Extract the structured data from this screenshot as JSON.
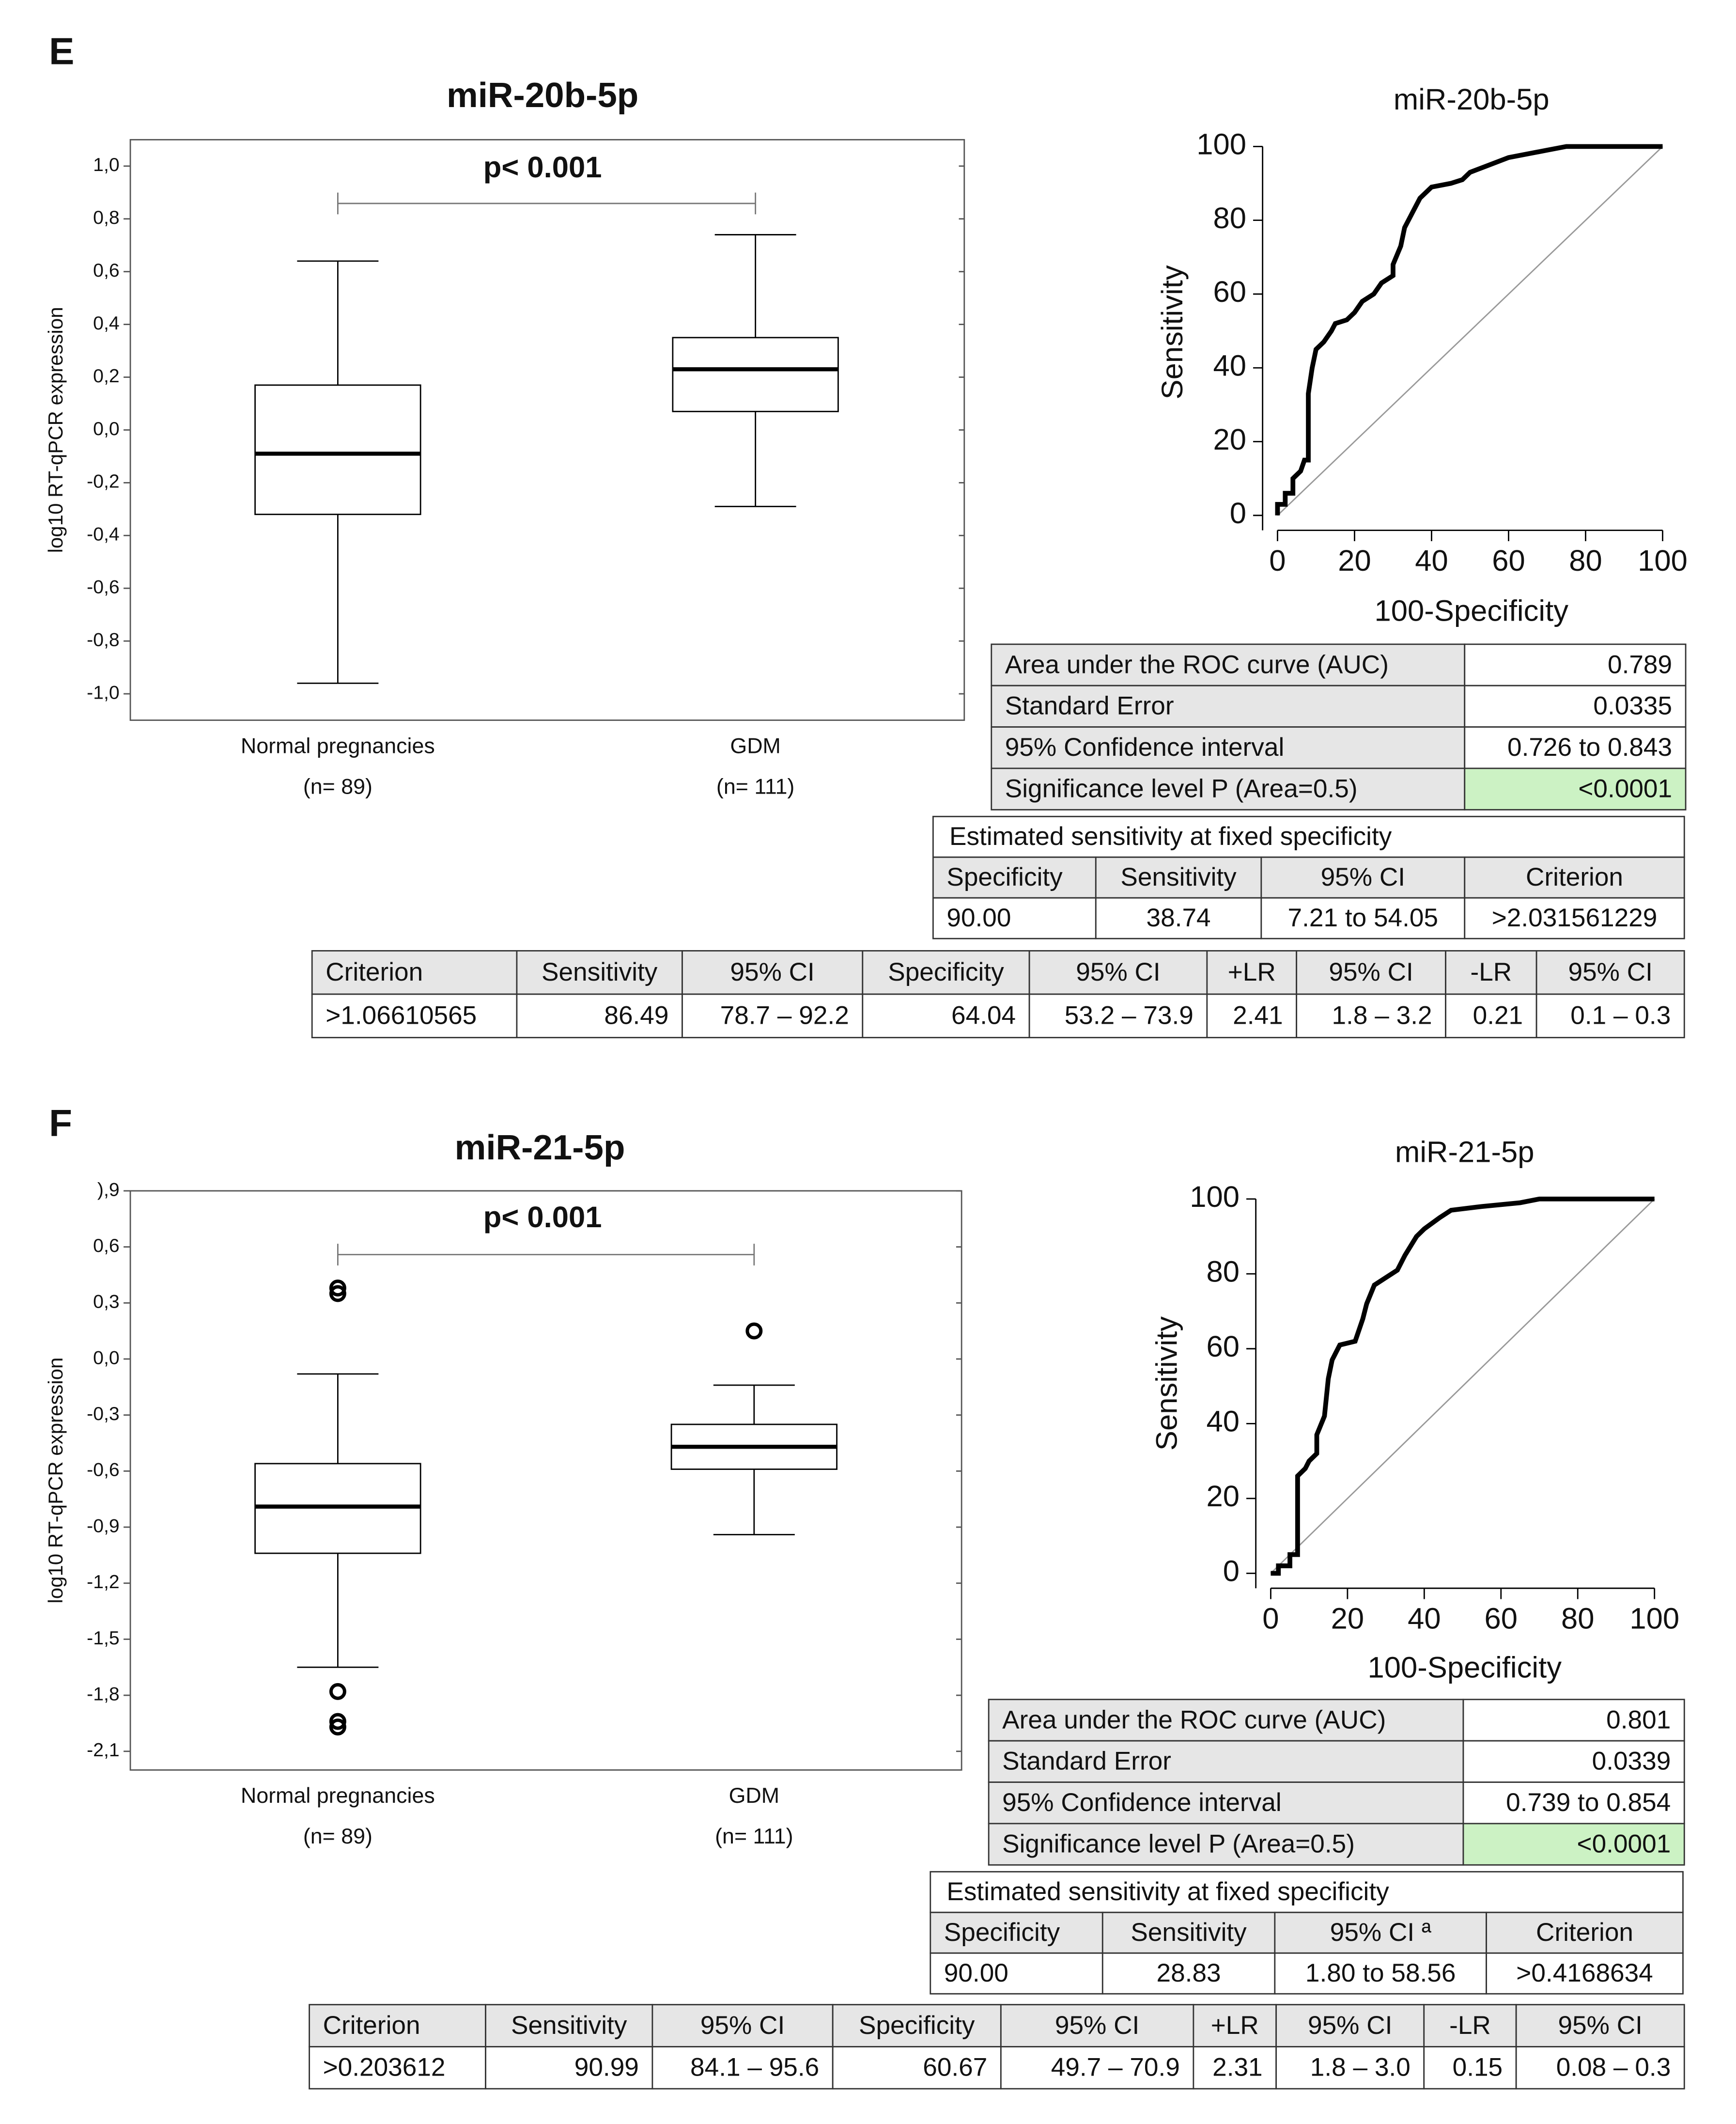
{
  "panel_labels": [
    "E",
    "F"
  ],
  "chart_data": [
    {
      "type": "box",
      "title": "miR-20b-5p",
      "annotation": "p< 0.001",
      "ylabel": "log10 RT-qPCR expression",
      "categories": [
        "Normal pregnancies",
        "GDM"
      ],
      "category_notes": [
        "(n= 89)",
        "(n= 111)"
      ],
      "boxes": [
        {
          "low": -0.96,
          "q1": -0.32,
          "median": -0.09,
          "q3": 0.17,
          "high": 0.64,
          "outliers": []
        },
        {
          "low": -0.29,
          "q1": 0.07,
          "median": 0.23,
          "q3": 0.35,
          "high": 0.74,
          "outliers": []
        }
      ],
      "color": "#000000",
      "ylim": [
        -1.1,
        1.1
      ],
      "yticks": [
        {
          "value": 1.0,
          "label": "1,0"
        },
        {
          "value": 0.8,
          "label": "0,8"
        },
        {
          "value": 0.6,
          "label": "0,6"
        },
        {
          "value": 0.4,
          "label": "0,4"
        },
        {
          "value": 0.2,
          "label": "0,2"
        },
        {
          "value": 0.0,
          "label": "0,0"
        },
        {
          "value": -0.2,
          "label": "-0,2"
        },
        {
          "value": -0.4,
          "label": "-0,4"
        },
        {
          "value": -0.6,
          "label": "-0,6"
        },
        {
          "value": -0.8,
          "label": "-0,8"
        },
        {
          "value": -1.0,
          "label": "-1,0"
        }
      ]
    },
    {
      "type": "roc",
      "title": "miR-20b-5p",
      "xlabel": "100-Specificity",
      "ylabel": "Sensitivity",
      "color": "#000000",
      "x": [
        0,
        0,
        2,
        2,
        4,
        4,
        6,
        7,
        8,
        8,
        9,
        10,
        12,
        14,
        15,
        18,
        20,
        22,
        25,
        27,
        30,
        30,
        32,
        33,
        35,
        37,
        40,
        45,
        48,
        50,
        55,
        60,
        65,
        70,
        75,
        100
      ],
      "values": [
        0,
        3,
        3,
        6,
        6,
        10,
        12,
        15,
        15,
        33,
        40,
        45,
        47,
        50,
        52,
        53,
        55,
        58,
        60,
        63,
        65,
        68,
        73,
        78,
        82,
        86,
        89,
        90,
        91,
        93,
        95,
        97,
        98,
        99,
        100,
        100
      ],
      "xlim": [
        0,
        100
      ],
      "ylim": [
        0,
        100
      ],
      "xticks": [
        0,
        20,
        40,
        60,
        80,
        100
      ],
      "yticks": [
        0,
        20,
        40,
        60,
        80,
        100
      ]
    },
    {
      "type": "box",
      "title": "miR-21-5p",
      "annotation": "p< 0.001",
      "ylabel": "log10 RT-qPCR expression",
      "categories": [
        "Normal pregnancies",
        "GDM"
      ],
      "category_notes": [
        "(n= 89)",
        "(n= 111)"
      ],
      "boxes": [
        {
          "low": -1.65,
          "q1": -1.04,
          "median": -0.79,
          "q3": -0.56,
          "high": -0.08,
          "outliers": [
            0.38,
            0.35,
            -1.78,
            -1.94,
            -1.97
          ]
        },
        {
          "low": -0.94,
          "q1": -0.59,
          "median": -0.47,
          "q3": -0.35,
          "high": -0.14,
          "outliers": [
            0.15
          ]
        }
      ],
      "color": "#000000",
      "ylim": [
        -2.2,
        0.9
      ],
      "yticks": [
        {
          "value": 0.9,
          "label": "),9"
        },
        {
          "value": 0.6,
          "label": "0,6"
        },
        {
          "value": 0.3,
          "label": "0,3"
        },
        {
          "value": 0.0,
          "label": "0,0"
        },
        {
          "value": -0.3,
          "label": "-0,3"
        },
        {
          "value": -0.6,
          "label": "-0,6"
        },
        {
          "value": -0.9,
          "label": "-0,9"
        },
        {
          "value": -1.2,
          "label": "-1,2"
        },
        {
          "value": -1.5,
          "label": "-1,5"
        },
        {
          "value": -1.8,
          "label": "-1,8"
        },
        {
          "value": -2.1,
          "label": "-2,1"
        }
      ]
    },
    {
      "type": "roc",
      "title": "miR-21-5p",
      "xlabel": "100-Specificity",
      "ylabel": "Sensitivity",
      "color": "#000000",
      "x": [
        0,
        2,
        2,
        5,
        5,
        7,
        7,
        9,
        10,
        12,
        12,
        14,
        15,
        16,
        18,
        22,
        24,
        25,
        27,
        30,
        33,
        35,
        38,
        40,
        44,
        47,
        55,
        65,
        70,
        100
      ],
      "values": [
        0,
        0,
        2,
        2,
        5,
        5,
        26,
        28,
        30,
        32,
        37,
        42,
        52,
        57,
        61,
        62,
        68,
        72,
        77,
        79,
        81,
        85,
        90,
        92,
        95,
        97,
        98,
        99,
        100,
        100
      ],
      "xlim": [
        0,
        100
      ],
      "ylim": [
        0,
        100
      ],
      "xticks": [
        0,
        20,
        40,
        60,
        80,
        100
      ],
      "yticks": [
        0,
        20,
        40,
        60,
        80,
        100
      ]
    }
  ],
  "tables": [
    {
      "rows": [
        [
          "Area under the ROC curve (AUC)",
          "0.789"
        ],
        [
          "Standard Error",
          "0.0335"
        ],
        [
          "95% Confidence interval",
          "0.726 to 0.843"
        ],
        [
          "Significance level P (Area=0.5)",
          "<0.0001"
        ]
      ]
    },
    {
      "title": "Estimated sensitivity at fixed specificity",
      "rows": [
        [
          "Specificity",
          "Sensitivity",
          "95% CI",
          "Criterion"
        ],
        [
          "90.00",
          "38.74",
          "7.21 to 54.05",
          ">2.031561229"
        ]
      ]
    },
    {
      "rows": [
        [
          "Criterion",
          "Sensitivity",
          "95% CI",
          "Specificity",
          "95% CI",
          "+LR",
          "95% CI",
          "-LR",
          "95% CI"
        ],
        [
          ">1.06610565",
          "86.49",
          "78.7 – 92.2",
          "64.04",
          "53.2 – 73.9",
          "2.41",
          "1.8 – 3.2",
          "0.21",
          "0.1 – 0.3"
        ]
      ]
    },
    {
      "rows": [
        [
          "Area under the ROC curve (AUC)",
          "0.801"
        ],
        [
          "Standard Error",
          "0.0339"
        ],
        [
          "95% Confidence interval",
          "0.739 to 0.854"
        ],
        [
          "Significance level P (Area=0.5)",
          "<0.0001"
        ]
      ]
    },
    {
      "title": "Estimated sensitivity at fixed specificity",
      "rows": [
        [
          "Specificity",
          "Sensitivity",
          "95% CI ª",
          "Criterion"
        ],
        [
          "90.00",
          "28.83",
          "1.80 to 58.56",
          ">0.4168634"
        ]
      ]
    },
    {
      "rows": [
        [
          "Criterion",
          "Sensitivity",
          "95% CI",
          "Specificity",
          "95% CI",
          "+LR",
          "95% CI",
          "-LR",
          "95% CI"
        ],
        [
          ">0.203612",
          "90.99",
          "84.1 – 95.6",
          "60.67",
          "49.7 – 70.9",
          "2.31",
          "1.8 – 3.0",
          "0.15",
          "0.08 – 0.3"
        ]
      ]
    }
  ]
}
